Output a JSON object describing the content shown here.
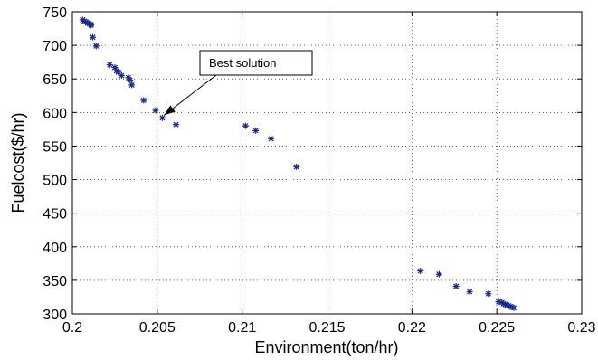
{
  "chart_data": {
    "type": "scatter",
    "xlabel": "Environment(ton/hr)",
    "ylabel": "Fuelcost($/hr)",
    "xlim": [
      0.2,
      0.23
    ],
    "ylim": [
      300,
      750
    ],
    "xticks": [
      "0.2",
      "0.205",
      "0.21",
      "0.215",
      "0.22",
      "0.225",
      "0.23"
    ],
    "yticks": [
      "300",
      "350",
      "400",
      "450",
      "500",
      "550",
      "600",
      "650",
      "700",
      "750"
    ],
    "grid": "dotted",
    "marker": "asterisk",
    "marker_color": "#1a2a8a",
    "annotation": {
      "text": "Best solution",
      "point": [
        0.2053,
        592
      ]
    },
    "points": [
      [
        0.2006,
        738
      ],
      [
        0.2007,
        736
      ],
      [
        0.2008,
        735
      ],
      [
        0.2009,
        734
      ],
      [
        0.2009,
        733
      ],
      [
        0.201,
        732
      ],
      [
        0.2011,
        731
      ],
      [
        0.2011,
        730
      ],
      [
        0.2012,
        712
      ],
      [
        0.2014,
        699
      ],
      [
        0.2022,
        671
      ],
      [
        0.2025,
        667
      ],
      [
        0.2026,
        662
      ],
      [
        0.2027,
        660
      ],
      [
        0.2029,
        655
      ],
      [
        0.2033,
        652
      ],
      [
        0.2034,
        648
      ],
      [
        0.2035,
        641
      ],
      [
        0.2042,
        618
      ],
      [
        0.2049,
        603
      ],
      [
        0.2053,
        592
      ],
      [
        0.2061,
        582
      ],
      [
        0.2102,
        580
      ],
      [
        0.2108,
        573
      ],
      [
        0.2117,
        561
      ],
      [
        0.2132,
        519
      ],
      [
        0.2205,
        364
      ],
      [
        0.2216,
        359
      ],
      [
        0.2226,
        341
      ],
      [
        0.2234,
        333
      ],
      [
        0.2245,
        330
      ],
      [
        0.2251,
        318
      ],
      [
        0.2253,
        317
      ],
      [
        0.2254,
        315
      ],
      [
        0.2255,
        314
      ],
      [
        0.2256,
        313
      ],
      [
        0.2257,
        312
      ],
      [
        0.2258,
        311
      ],
      [
        0.2259,
        310
      ],
      [
        0.226,
        309
      ]
    ]
  }
}
